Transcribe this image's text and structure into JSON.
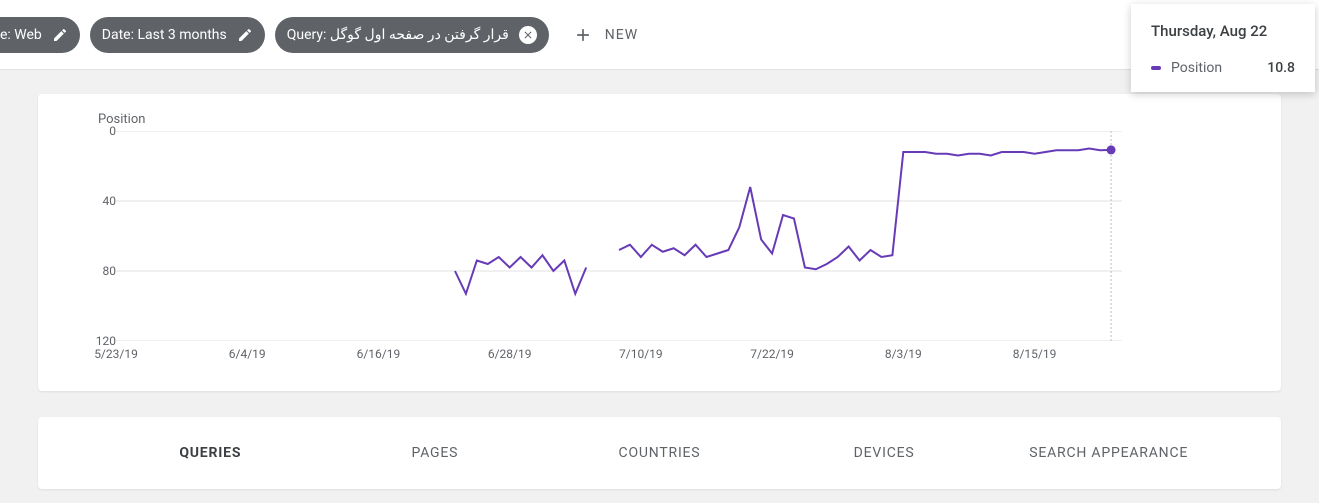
{
  "filters": {
    "chip0_label": "e: Web",
    "chip1_label": "Date: Last 3 months",
    "chip2_label": "Query: قرار گرفتن در صفحه اول گوگل",
    "new_label": "NEW"
  },
  "tooltip": {
    "date": "Thursday, Aug 22",
    "metric_label": "Position",
    "metric_value": "10.8",
    "swatch_color": "#673ab7"
  },
  "chart": {
    "title": "Position",
    "line_color": "#673ab7",
    "marker_color": "#673ab7",
    "grid_color": "#e0e0e0",
    "axis_text_color": "#5f6368",
    "hover_line_color": "#bdbdbd",
    "background_color": "#ffffff",
    "y_axis": {
      "min": 0,
      "max": 120,
      "ticks": [
        0,
        40,
        80,
        120
      ]
    },
    "x_ticks": [
      "5/23/19",
      "6/4/19",
      "6/16/19",
      "6/28/19",
      "7/10/19",
      "7/22/19",
      "8/3/19",
      "8/15/19"
    ],
    "x_domain_days": 92,
    "series": [
      {
        "d": 31,
        "v": 80
      },
      {
        "d": 32,
        "v": 93
      },
      {
        "d": 33,
        "v": 74
      },
      {
        "d": 34,
        "v": 76
      },
      {
        "d": 35,
        "v": 72
      },
      {
        "d": 36,
        "v": 78
      },
      {
        "d": 37,
        "v": 72
      },
      {
        "d": 38,
        "v": 78
      },
      {
        "d": 39,
        "v": 71
      },
      {
        "d": 40,
        "v": 80
      },
      {
        "d": 41,
        "v": 74
      },
      {
        "d": 42,
        "v": 93
      },
      {
        "d": 43,
        "v": 78
      },
      {
        "d": 46,
        "v": 68
      },
      {
        "d": 47,
        "v": 65
      },
      {
        "d": 48,
        "v": 72
      },
      {
        "d": 49,
        "v": 65
      },
      {
        "d": 50,
        "v": 69
      },
      {
        "d": 51,
        "v": 67
      },
      {
        "d": 52,
        "v": 71
      },
      {
        "d": 53,
        "v": 65
      },
      {
        "d": 54,
        "v": 72
      },
      {
        "d": 55,
        "v": 70
      },
      {
        "d": 56,
        "v": 68
      },
      {
        "d": 57,
        "v": 55
      },
      {
        "d": 58,
        "v": 32
      },
      {
        "d": 59,
        "v": 62
      },
      {
        "d": 60,
        "v": 70
      },
      {
        "d": 61,
        "v": 48
      },
      {
        "d": 62,
        "v": 50
      },
      {
        "d": 63,
        "v": 78
      },
      {
        "d": 64,
        "v": 79
      },
      {
        "d": 65,
        "v": 76
      },
      {
        "d": 66,
        "v": 72
      },
      {
        "d": 67,
        "v": 66
      },
      {
        "d": 68,
        "v": 74
      },
      {
        "d": 69,
        "v": 68
      },
      {
        "d": 70,
        "v": 72
      },
      {
        "d": 71,
        "v": 71
      },
      {
        "d": 72,
        "v": 12
      },
      {
        "d": 73,
        "v": 12
      },
      {
        "d": 74,
        "v": 12
      },
      {
        "d": 75,
        "v": 13
      },
      {
        "d": 76,
        "v": 13
      },
      {
        "d": 77,
        "v": 14
      },
      {
        "d": 78,
        "v": 13
      },
      {
        "d": 79,
        "v": 13
      },
      {
        "d": 80,
        "v": 14
      },
      {
        "d": 81,
        "v": 12
      },
      {
        "d": 82,
        "v": 12
      },
      {
        "d": 83,
        "v": 12
      },
      {
        "d": 84,
        "v": 13
      },
      {
        "d": 85,
        "v": 12
      },
      {
        "d": 86,
        "v": 11
      },
      {
        "d": 87,
        "v": 11
      },
      {
        "d": 88,
        "v": 11
      },
      {
        "d": 89,
        "v": 10
      },
      {
        "d": 90,
        "v": 11
      },
      {
        "d": 91,
        "v": 10.8
      }
    ],
    "break_after_index": 12,
    "marker_day": 91,
    "hover_line_day": 91
  },
  "tabs": {
    "items": [
      "QUERIES",
      "PAGES",
      "COUNTRIES",
      "DEVICES",
      "SEARCH APPEARANCE"
    ],
    "active_index": 0
  }
}
